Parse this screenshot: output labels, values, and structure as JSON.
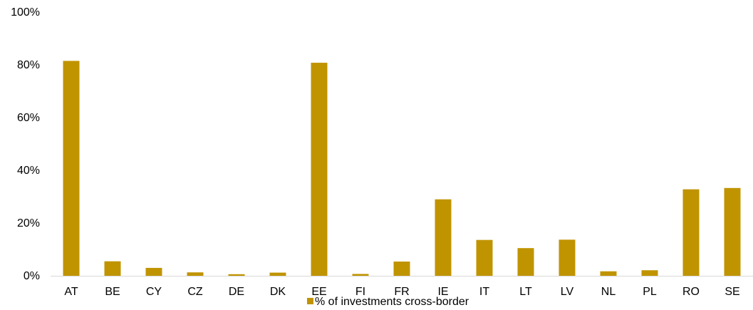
{
  "chart_data": {
    "type": "bar",
    "title": "",
    "xlabel": "",
    "ylabel": "",
    "categories": [
      "AT",
      "BE",
      "CY",
      "CZ",
      "DE",
      "DK",
      "EE",
      "FI",
      "FR",
      "IE",
      "IT",
      "LT",
      "LV",
      "NL",
      "PL",
      "RO",
      "SE"
    ],
    "series": [
      {
        "name": "% of investments cross-border",
        "values": [
          81.5,
          5.5,
          3.0,
          1.3,
          0.6,
          1.2,
          80.8,
          0.7,
          5.4,
          29.0,
          13.6,
          10.5,
          13.7,
          1.7,
          2.1,
          32.8,
          33.3
        ],
        "color": "#C09400"
      }
    ],
    "ylim": [
      0,
      100
    ],
    "yticks": [
      "0%",
      "20%",
      "40%",
      "60%",
      "80%",
      "100%"
    ],
    "grid": false,
    "legend_position": "bottom-center"
  }
}
